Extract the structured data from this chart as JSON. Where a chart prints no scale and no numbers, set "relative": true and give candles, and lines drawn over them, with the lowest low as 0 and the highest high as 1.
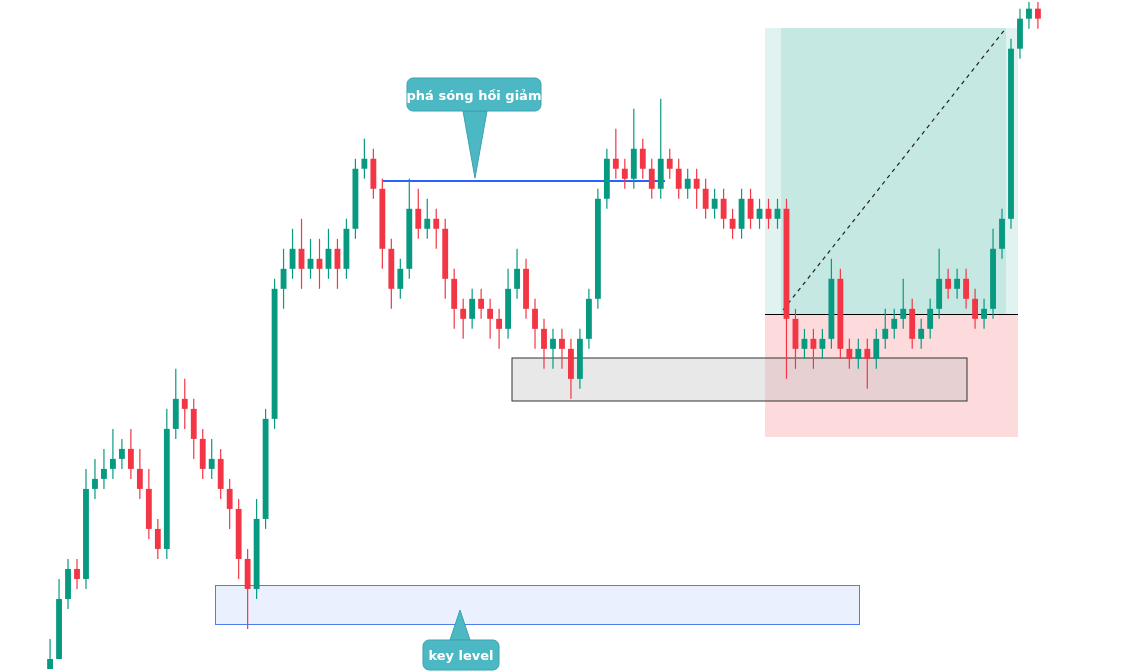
{
  "chart_data": {
    "type": "candlestick",
    "relative": true,
    "annotations": [
      "phá sóng hồi giảm",
      "key level"
    ],
    "categories": [
      null,
      null,
      null,
      null,
      null,
      null,
      null,
      null,
      null,
      null,
      null,
      null,
      null,
      null,
      null,
      null,
      null,
      null,
      null,
      null,
      null,
      null,
      null,
      null,
      null,
      null,
      null,
      null,
      null,
      null,
      null,
      null,
      null,
      null,
      null,
      null,
      null,
      null,
      null,
      null,
      null,
      null,
      null,
      null,
      null,
      null,
      null,
      null,
      null,
      null,
      null,
      null,
      null,
      null,
      null,
      null,
      null,
      null,
      null,
      null,
      null,
      null,
      null,
      null,
      null,
      null,
      null,
      null,
      null,
      null,
      null,
      null,
      null,
      null,
      null,
      null,
      null,
      null,
      null,
      null,
      null,
      null,
      null,
      null,
      null,
      null,
      null,
      null,
      null,
      null,
      null,
      null,
      null,
      null,
      null,
      null,
      null,
      null,
      null,
      null,
      null,
      null,
      null,
      null,
      null,
      null,
      null,
      null,
      null,
      null,
      null
    ],
    "ohlc": [
      [
        0,
        0.045,
        0,
        0.015
      ],
      [
        0.015,
        0.135,
        0.015,
        0.105
      ],
      [
        0.105,
        0.165,
        0.09,
        0.15
      ],
      [
        0.15,
        0.165,
        0.12,
        0.135
      ],
      [
        0.135,
        0.3,
        0.12,
        0.27
      ],
      [
        0.27,
        0.315,
        0.255,
        0.285
      ],
      [
        0.285,
        0.33,
        0.27,
        0.3
      ],
      [
        0.3,
        0.36,
        0.285,
        0.315
      ],
      [
        0.315,
        0.345,
        0.3,
        0.33
      ],
      [
        0.33,
        0.36,
        0.285,
        0.3
      ],
      [
        0.3,
        0.33,
        0.255,
        0.27
      ],
      [
        0.27,
        0.3,
        0.195,
        0.21
      ],
      [
        0.21,
        0.225,
        0.165,
        0.18
      ],
      [
        0.18,
        0.39,
        0.165,
        0.36
      ],
      [
        0.36,
        0.45,
        0.345,
        0.405
      ],
      [
        0.405,
        0.435,
        0.36,
        0.39
      ],
      [
        0.39,
        0.405,
        0.315,
        0.345
      ],
      [
        0.345,
        0.36,
        0.285,
        0.3
      ],
      [
        0.3,
        0.345,
        0.285,
        0.315
      ],
      [
        0.315,
        0.33,
        0.255,
        0.27
      ],
      [
        0.27,
        0.285,
        0.21,
        0.24
      ],
      [
        0.24,
        0.255,
        0.135,
        0.165
      ],
      [
        0.165,
        0.18,
        0.06,
        0.12
      ],
      [
        0.12,
        0.255,
        0.105,
        0.225
      ],
      [
        0.225,
        0.39,
        0.21,
        0.375
      ],
      [
        0.375,
        0.585,
        0.36,
        0.57
      ],
      [
        0.57,
        0.63,
        0.54,
        0.6
      ],
      [
        0.6,
        0.66,
        0.585,
        0.63
      ],
      [
        0.63,
        0.675,
        0.57,
        0.6
      ],
      [
        0.6,
        0.645,
        0.585,
        0.615
      ],
      [
        0.615,
        0.645,
        0.57,
        0.6
      ],
      [
        0.6,
        0.66,
        0.585,
        0.63
      ],
      [
        0.63,
        0.645,
        0.57,
        0.6
      ],
      [
        0.6,
        0.675,
        0.585,
        0.66
      ],
      [
        0.66,
        0.765,
        0.645,
        0.75
      ],
      [
        0.75,
        0.795,
        0.735,
        0.765
      ],
      [
        0.765,
        0.78,
        0.705,
        0.72
      ],
      [
        0.72,
        0.735,
        0.6,
        0.63
      ],
      [
        0.63,
        0.645,
        0.54,
        0.57
      ],
      [
        0.57,
        0.615,
        0.555,
        0.6
      ],
      [
        0.6,
        0.735,
        0.585,
        0.69
      ],
      [
        0.69,
        0.72,
        0.645,
        0.66
      ],
      [
        0.66,
        0.705,
        0.645,
        0.675
      ],
      [
        0.675,
        0.69,
        0.63,
        0.66
      ],
      [
        0.66,
        0.675,
        0.555,
        0.585
      ],
      [
        0.585,
        0.6,
        0.51,
        0.54
      ],
      [
        0.54,
        0.555,
        0.495,
        0.525
      ],
      [
        0.525,
        0.57,
        0.51,
        0.555
      ],
      [
        0.555,
        0.57,
        0.525,
        0.54
      ],
      [
        0.54,
        0.555,
        0.495,
        0.525
      ],
      [
        0.525,
        0.54,
        0.48,
        0.51
      ],
      [
        0.51,
        0.6,
        0.495,
        0.57
      ],
      [
        0.57,
        0.63,
        0.555,
        0.6
      ],
      [
        0.6,
        0.615,
        0.525,
        0.54
      ],
      [
        0.54,
        0.555,
        0.48,
        0.51
      ],
      [
        0.51,
        0.525,
        0.45,
        0.48
      ],
      [
        0.48,
        0.51,
        0.45,
        0.495
      ],
      [
        0.495,
        0.51,
        0.45,
        0.48
      ],
      [
        0.48,
        0.495,
        0.405,
        0.435
      ],
      [
        0.435,
        0.51,
        0.42,
        0.495
      ],
      [
        0.495,
        0.57,
        0.48,
        0.555
      ],
      [
        0.555,
        0.72,
        0.54,
        0.705
      ],
      [
        0.705,
        0.78,
        0.69,
        0.765
      ],
      [
        0.765,
        0.81,
        0.735,
        0.75
      ],
      [
        0.75,
        0.765,
        0.72,
        0.735
      ],
      [
        0.735,
        0.84,
        0.72,
        0.78
      ],
      [
        0.78,
        0.795,
        0.735,
        0.75
      ],
      [
        0.75,
        0.765,
        0.705,
        0.72
      ],
      [
        0.72,
        0.855,
        0.705,
        0.765
      ],
      [
        0.765,
        0.78,
        0.735,
        0.75
      ],
      [
        0.75,
        0.765,
        0.705,
        0.72
      ],
      [
        0.72,
        0.75,
        0.705,
        0.735
      ],
      [
        0.735,
        0.75,
        0.69,
        0.72
      ],
      [
        0.72,
        0.735,
        0.675,
        0.69
      ],
      [
        0.69,
        0.72,
        0.675,
        0.705
      ],
      [
        0.705,
        0.72,
        0.66,
        0.675
      ],
      [
        0.675,
        0.69,
        0.645,
        0.66
      ],
      [
        0.66,
        0.72,
        0.645,
        0.705
      ],
      [
        0.705,
        0.72,
        0.66,
        0.675
      ],
      [
        0.675,
        0.705,
        0.66,
        0.69
      ],
      [
        0.69,
        0.705,
        0.66,
        0.675
      ],
      [
        0.675,
        0.705,
        0.66,
        0.69
      ],
      [
        0.69,
        0.705,
        0.435,
        0.525
      ],
      [
        0.525,
        0.54,
        0.45,
        0.48
      ],
      [
        0.48,
        0.51,
        0.465,
        0.495
      ],
      [
        0.495,
        0.51,
        0.45,
        0.48
      ],
      [
        0.48,
        0.51,
        0.465,
        0.495
      ],
      [
        0.495,
        0.615,
        0.48,
        0.585
      ],
      [
        0.585,
        0.6,
        0.465,
        0.48
      ],
      [
        0.48,
        0.495,
        0.45,
        0.465
      ],
      [
        0.465,
        0.495,
        0.45,
        0.48
      ],
      [
        0.48,
        0.495,
        0.42,
        0.465
      ],
      [
        0.465,
        0.51,
        0.45,
        0.495
      ],
      [
        0.495,
        0.54,
        0.48,
        0.51
      ],
      [
        0.51,
        0.54,
        0.495,
        0.525
      ],
      [
        0.525,
        0.585,
        0.51,
        0.54
      ],
      [
        0.54,
        0.555,
        0.48,
        0.495
      ],
      [
        0.495,
        0.525,
        0.48,
        0.51
      ],
      [
        0.51,
        0.555,
        0.495,
        0.54
      ],
      [
        0.54,
        0.63,
        0.525,
        0.585
      ],
      [
        0.585,
        0.6,
        0.555,
        0.57
      ],
      [
        0.57,
        0.6,
        0.555,
        0.585
      ],
      [
        0.585,
        0.6,
        0.54,
        0.555
      ],
      [
        0.555,
        0.57,
        0.51,
        0.525
      ],
      [
        0.525,
        0.555,
        0.51,
        0.54
      ],
      [
        0.54,
        0.66,
        0.525,
        0.63
      ],
      [
        0.63,
        0.69,
        0.615,
        0.675
      ],
      [
        0.675,
        0.945,
        0.66,
        0.93
      ],
      [
        0.93,
        0.99,
        0.915,
        0.975
      ],
      [
        0.975,
        1,
        0.96,
        0.99
      ],
      [
        0.99,
        1,
        0.96,
        0.975
      ]
    ],
    "colors": [
      "#089981",
      "#089981",
      "#089981",
      "#f23645",
      "#089981",
      "#089981",
      "#089981",
      "#089981",
      "#089981",
      "#f23645",
      "#f23645",
      "#f23645",
      "#f23645",
      "#089981",
      "#089981",
      "#f23645",
      "#f23645",
      "#f23645",
      "#089981",
      "#f23645",
      "#f23645",
      "#f23645",
      "#f23645",
      "#089981",
      "#089981",
      "#089981",
      "#089981",
      "#089981",
      "#f23645",
      "#089981",
      "#f23645",
      "#089981",
      "#f23645",
      "#089981",
      "#089981",
      "#089981",
      "#f23645",
      "#f23645",
      "#f23645",
      "#089981",
      "#089981",
      "#f23645",
      "#089981",
      "#f23645",
      "#f23645",
      "#f23645",
      "#f23645",
      "#089981",
      "#f23645",
      "#f23645",
      "#f23645",
      "#089981",
      "#089981",
      "#f23645",
      "#f23645",
      "#f23645",
      "#089981",
      "#f23645",
      "#f23645",
      "#089981",
      "#089981",
      "#089981",
      "#089981",
      "#f23645",
      "#f23645",
      "#089981",
      "#f23645",
      "#f23645",
      "#089981",
      "#f23645",
      "#f23645",
      "#089981",
      "#f23645",
      "#f23645",
      "#089981",
      "#f23645",
      "#f23645",
      "#089981",
      "#f23645",
      "#089981",
      "#f23645",
      "#089981",
      "#f23645",
      "#f23645",
      "#089981",
      "#f23645",
      "#089981",
      "#089981",
      "#f23645",
      "#f23645",
      "#089981",
      "#f23645",
      "#089981",
      "#089981",
      "#089981",
      "#089981",
      "#f23645",
      "#089981",
      "#089981",
      "#089981",
      "#f23645",
      "#089981",
      "#f23645",
      "#f23645",
      "#089981",
      "#089981",
      "#089981",
      "#089981",
      "#089981",
      "#089981",
      "#f23645"
    ]
  }
}
